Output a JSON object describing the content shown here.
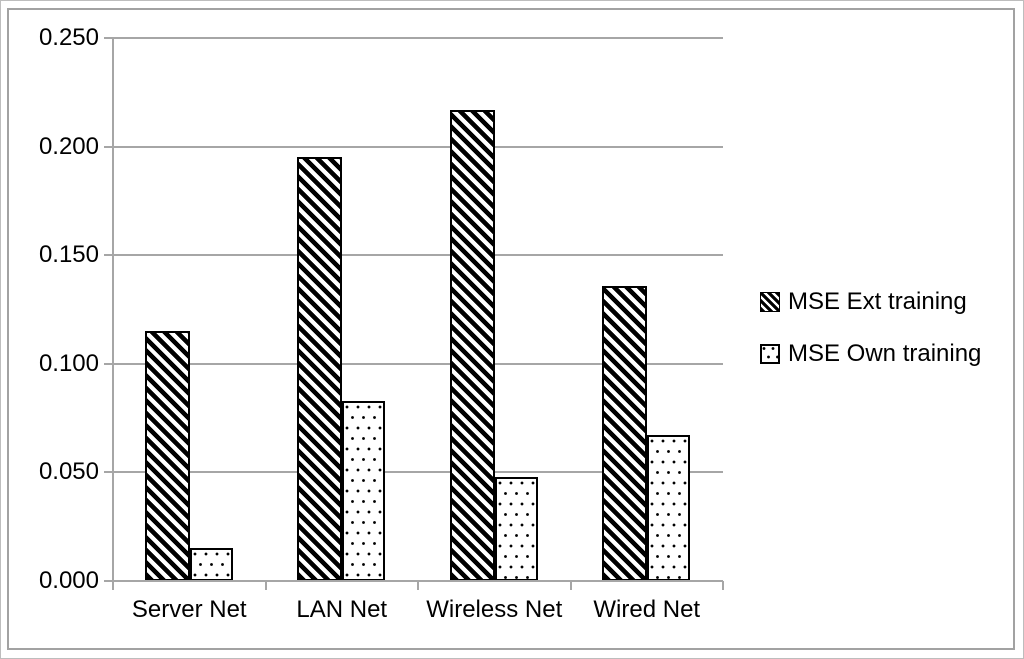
{
  "figure": {
    "kind": "excel-style-clustered-bar-chart",
    "background": "#ffffff"
  },
  "colors": {
    "text": "#000000",
    "gridline": "#a6a6a6",
    "axis": "#a6a6a6",
    "frame_border": "#a2a2a2",
    "bar_outline": "#000000",
    "bar_fill": "#ffffff"
  },
  "chart_data": {
    "type": "bar",
    "title": "",
    "xlabel": "",
    "ylabel": "",
    "categories": [
      "Server Net",
      "LAN Net",
      "Wireless Net",
      "Wired Net"
    ],
    "series": [
      {
        "name": "MSE Ext training",
        "pattern": "diagonal-hatch",
        "values": [
          0.115,
          0.195,
          0.217,
          0.136
        ]
      },
      {
        "name": "MSE Own training",
        "pattern": "dots",
        "values": [
          0.015,
          0.083,
          0.048,
          0.067
        ]
      }
    ],
    "ylim": [
      0,
      0.25
    ],
    "ytick_step": 0.05,
    "ytick_values": [
      0,
      0.05,
      0.1,
      0.15,
      0.2,
      0.25
    ],
    "ytick_labels": [
      "0.000",
      "0.050",
      "0.100",
      "0.150",
      "0.200",
      "0.250"
    ],
    "grid": true,
    "legend_position": "right"
  }
}
